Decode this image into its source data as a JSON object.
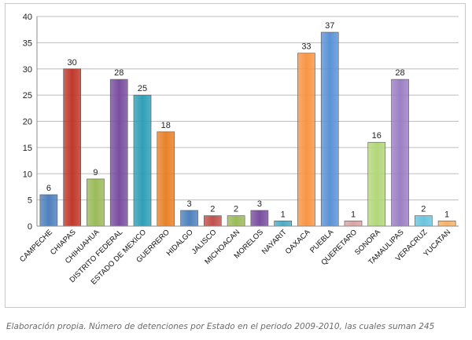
{
  "chart_data": {
    "type": "bar",
    "title": "",
    "xlabel": "",
    "ylabel": "",
    "ylim": [
      0,
      40
    ],
    "yticks": [
      0,
      5,
      10,
      15,
      20,
      25,
      30,
      35,
      40
    ],
    "grid": true,
    "legend": "none",
    "categories": [
      "CAMPECHE",
      "CHIAPAS",
      "CHIHUAHUA",
      "DISTRITO FEDERAL",
      "ESTADO DE MEXICO",
      "GUERRERO",
      "HIDALGO",
      "JALISCO",
      "MICHOACAN",
      "MORELOS",
      "NAYARIT",
      "OAXACA",
      "PUEBLA",
      "QUERETARO",
      "SONORA",
      "TAMAULIPAS",
      "VERACRUZ",
      "YUCATAN"
    ],
    "values": [
      6,
      30,
      9,
      28,
      25,
      18,
      3,
      2,
      2,
      3,
      1,
      33,
      37,
      1,
      16,
      28,
      2,
      1
    ],
    "colors": [
      "#4f81bd",
      "#c0392b",
      "#9bbb59",
      "#7a4ea0",
      "#2f9fb7",
      "#e8822a",
      "#4f81bd",
      "#c0504d",
      "#9bbb59",
      "#7a4ea0",
      "#4bacc6",
      "#f79646",
      "#5b93d6",
      "#d9a3a3",
      "#b3d77a",
      "#9b7fc4",
      "#6cc4dc",
      "#f7b26a"
    ]
  },
  "caption": "Elaboración propia. Número de detenciones por Estado en el periodo 2009-2010, las cuales suman 245"
}
